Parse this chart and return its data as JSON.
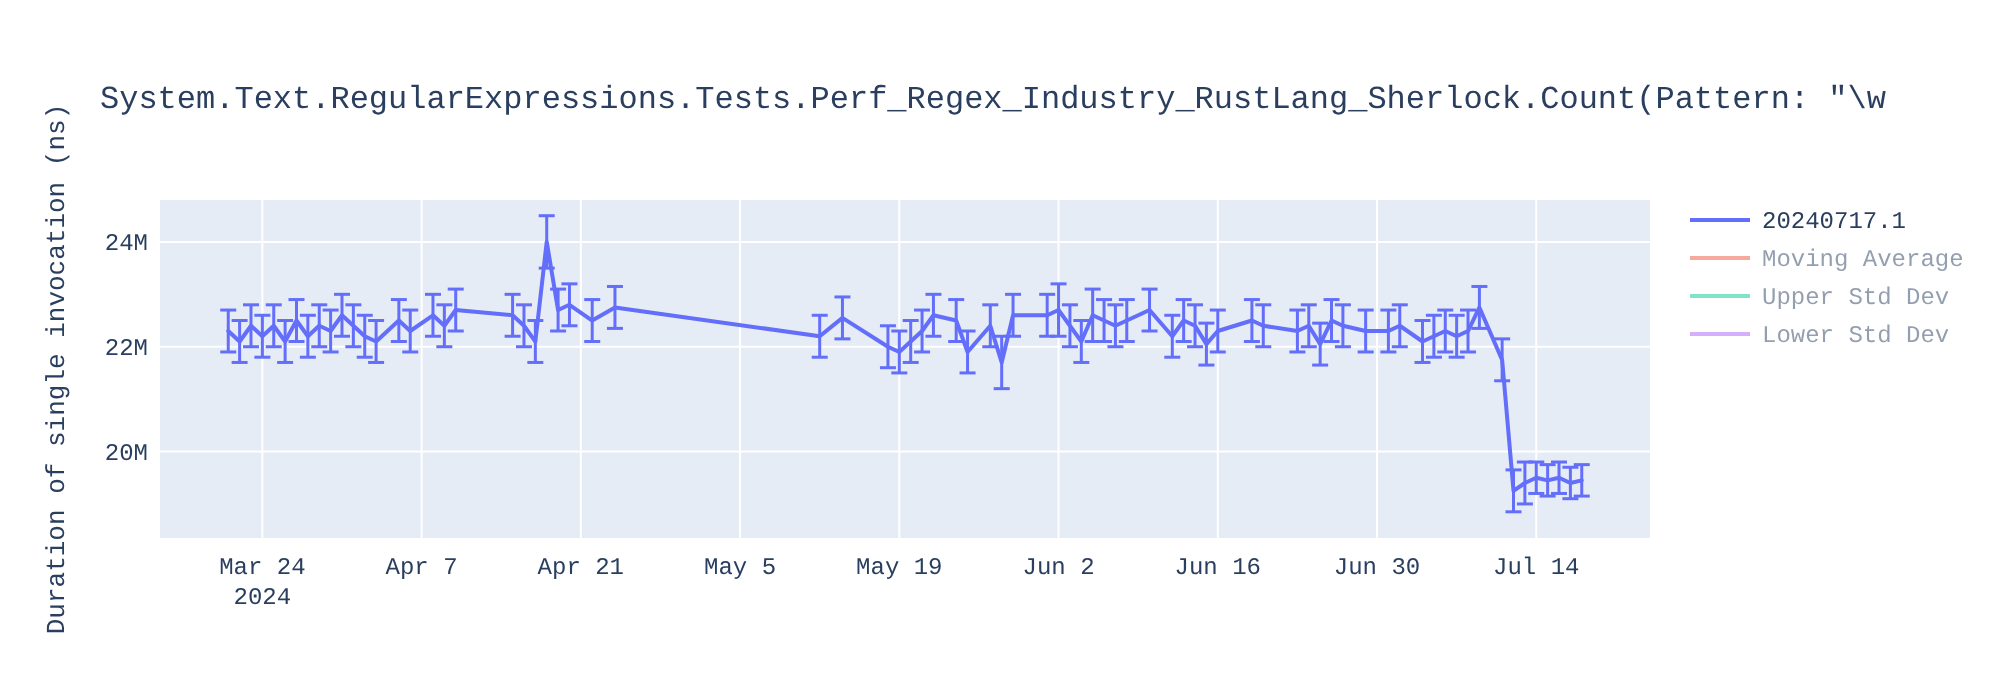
{
  "chart_data": {
    "type": "line",
    "title": "System.Text.RegularExpressions.Tests.Perf_Regex_Industry_RustLang_Sherlock.Count(Pattern: \"\\w",
    "ylabel": "Duration of single invocation (ns)",
    "xlim": [
      "2024-03-15",
      "2024-07-24"
    ],
    "xticks": [
      {
        "value": "2024-03-24",
        "label": "Mar 24\n2024"
      },
      {
        "value": "2024-04-07",
        "label": "Apr 7"
      },
      {
        "value": "2024-04-21",
        "label": "Apr 21"
      },
      {
        "value": "2024-05-05",
        "label": "May 5"
      },
      {
        "value": "2024-05-19",
        "label": "May 19"
      },
      {
        "value": "2024-06-02",
        "label": "Jun 2"
      },
      {
        "value": "2024-06-16",
        "label": "Jun 16"
      },
      {
        "value": "2024-06-30",
        "label": "Jun 30"
      },
      {
        "value": "2024-07-14",
        "label": "Jul 14"
      }
    ],
    "ylim": [
      18350000,
      24800000
    ],
    "yticks": [
      {
        "value": 20000000,
        "label": "20M"
      },
      {
        "value": 22000000,
        "label": "22M"
      },
      {
        "value": 24000000,
        "label": "24M"
      }
    ],
    "grid": true,
    "legend": "top right",
    "marker": "none",
    "line_style": "solid",
    "series": [
      {
        "name": "20240717.1",
        "color": "#636efa",
        "x": [
          "2024-03-21",
          "2024-03-22",
          "2024-03-23",
          "2024-03-24",
          "2024-03-25",
          "2024-03-26",
          "2024-03-27",
          "2024-03-28",
          "2024-03-29",
          "2024-03-30",
          "2024-03-31",
          "2024-04-01",
          "2024-04-02",
          "2024-04-03",
          "2024-04-05",
          "2024-04-06",
          "2024-04-08",
          "2024-04-09",
          "2024-04-10",
          "2024-04-15",
          "2024-04-16",
          "2024-04-17",
          "2024-04-18",
          "2024-04-19",
          "2024-04-20",
          "2024-04-22",
          "2024-04-24",
          "2024-05-12",
          "2024-05-14",
          "2024-05-18",
          "2024-05-19",
          "2024-05-20",
          "2024-05-21",
          "2024-05-22",
          "2024-05-24",
          "2024-05-25",
          "2024-05-27",
          "2024-05-28",
          "2024-05-29",
          "2024-06-01",
          "2024-06-02",
          "2024-06-03",
          "2024-06-04",
          "2024-06-05",
          "2024-06-06",
          "2024-06-07",
          "2024-06-08",
          "2024-06-10",
          "2024-06-12",
          "2024-06-13",
          "2024-06-14",
          "2024-06-15",
          "2024-06-16",
          "2024-06-19",
          "2024-06-20",
          "2024-06-23",
          "2024-06-24",
          "2024-06-25",
          "2024-06-26",
          "2024-06-27",
          "2024-06-29",
          "2024-07-01",
          "2024-07-02",
          "2024-07-04",
          "2024-07-05",
          "2024-07-06",
          "2024-07-07",
          "2024-07-08",
          "2024-07-09",
          "2024-07-11",
          "2024-07-12",
          "2024-07-13",
          "2024-07-14",
          "2024-07-15",
          "2024-07-16",
          "2024-07-17",
          "2024-07-18"
        ],
        "values": [
          22300000,
          22100000,
          22400000,
          22200000,
          22400000,
          22100000,
          22500000,
          22200000,
          22400000,
          22300000,
          22600000,
          22400000,
          22200000,
          22100000,
          22500000,
          22300000,
          22600000,
          22400000,
          22700000,
          22600000,
          22400000,
          22100000,
          24000000,
          22700000,
          22800000,
          22500000,
          22750000,
          22200000,
          22550000,
          22000000,
          21900000,
          22100000,
          22300000,
          22600000,
          22500000,
          21900000,
          22400000,
          21700000,
          22600000,
          22600000,
          22700000,
          22400000,
          22100000,
          22600000,
          22500000,
          22400000,
          22500000,
          22700000,
          22200000,
          22500000,
          22400000,
          22050000,
          22300000,
          22500000,
          22400000,
          22300000,
          22400000,
          22050000,
          22500000,
          22400000,
          22300000,
          22300000,
          22400000,
          22100000,
          22200000,
          22300000,
          22200000,
          22300000,
          22750000,
          21750000,
          19250000,
          19400000,
          19500000,
          19450000,
          19500000,
          19400000,
          19450000
        ],
        "errors": [
          400000,
          400000,
          400000,
          400000,
          400000,
          400000,
          400000,
          400000,
          400000,
          400000,
          400000,
          400000,
          400000,
          400000,
          400000,
          400000,
          400000,
          400000,
          400000,
          400000,
          400000,
          400000,
          500000,
          400000,
          400000,
          400000,
          400000,
          400000,
          400000,
          400000,
          400000,
          400000,
          400000,
          400000,
          400000,
          400000,
          400000,
          500000,
          400000,
          400000,
          500000,
          400000,
          400000,
          500000,
          400000,
          400000,
          400000,
          400000,
          400000,
          400000,
          400000,
          400000,
          400000,
          400000,
          400000,
          400000,
          400000,
          400000,
          400000,
          400000,
          400000,
          400000,
          400000,
          400000,
          400000,
          400000,
          400000,
          400000,
          400000,
          400000,
          400000,
          400000,
          300000,
          300000,
          300000,
          300000,
          300000
        ]
      },
      {
        "name": "Moving Average",
        "color": "#ef553b"
      },
      {
        "name": "Upper Std Dev",
        "color": "#00cc96"
      },
      {
        "name": "Lower Std Dev",
        "color": "#ab63fa"
      }
    ]
  }
}
